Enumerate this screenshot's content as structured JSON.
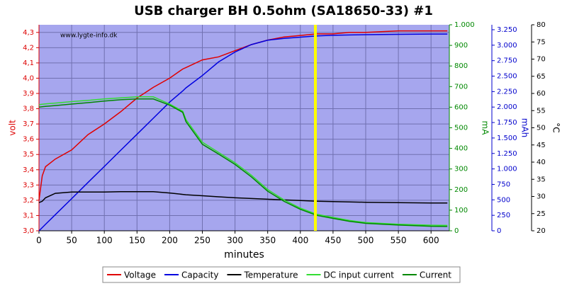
{
  "chart_data": {
    "type": "line",
    "title": "USB charger BH 0.5ohm (SA18650-33) #1",
    "watermark": "www.lygte-info.dk",
    "x_label": "minutes",
    "xlim": [
      0,
      628
    ],
    "xticks": [
      0,
      50,
      100,
      150,
      200,
      250,
      300,
      350,
      400,
      450,
      500,
      550,
      600
    ],
    "y_label": "volt",
    "y_color": "#dd0000",
    "ylim": [
      3.0,
      4.35
    ],
    "yticks": [
      {
        "value": 3.0,
        "label": "3,0"
      },
      {
        "value": 3.1,
        "label": "3,1"
      },
      {
        "value": 3.2,
        "label": "3,2"
      },
      {
        "value": 3.3,
        "label": "3,3"
      },
      {
        "value": 3.4,
        "label": "3,4"
      },
      {
        "value": 3.5,
        "label": "3,5"
      },
      {
        "value": 3.6,
        "label": "3,6"
      },
      {
        "value": 3.7,
        "label": "3,7"
      },
      {
        "value": 3.8,
        "label": "3,8"
      },
      {
        "value": 3.9,
        "label": "3,9"
      },
      {
        "value": 4.0,
        "label": "4,0"
      },
      {
        "value": 4.1,
        "label": "4,1"
      },
      {
        "value": 4.2,
        "label": "4,2"
      },
      {
        "value": 4.3,
        "label": "4,3"
      }
    ],
    "y2_label": "mA",
    "y2_color": "#008800",
    "y2lim": [
      0,
      1000
    ],
    "y2ticks": [
      0,
      100,
      200,
      300,
      400,
      500,
      600,
      700,
      800,
      900,
      {
        "value": 1000,
        "label": "1.000"
      }
    ],
    "y3_label": "mAh",
    "y3_color": "#0000cc",
    "y3lim": [
      0,
      3330
    ],
    "y3ticks": [
      0,
      250,
      500,
      750,
      {
        "value": 1000,
        "label": "1.000"
      },
      {
        "value": 1250,
        "label": "1.250"
      },
      {
        "value": 1500,
        "label": "1.500"
      },
      {
        "value": 1750,
        "label": "1.750"
      },
      {
        "value": 2000,
        "label": "2.000"
      },
      {
        "value": 2250,
        "label": "2.250"
      },
      {
        "value": 2500,
        "label": "2.500"
      },
      {
        "value": 2750,
        "label": "2.750"
      },
      {
        "value": 3000,
        "label": "3.000"
      },
      {
        "value": 3250,
        "label": "3.250"
      }
    ],
    "y4_label": "°C",
    "y4_color": "#000000",
    "y4lim": [
      20,
      80
    ],
    "y4ticks": [
      20,
      25,
      30,
      35,
      40,
      45,
      50,
      55,
      60,
      65,
      70,
      75,
      80
    ],
    "grid": true,
    "background": "#a6a6ee",
    "marker_x": 423,
    "marker_color": "#ffff00",
    "x": [
      0,
      5,
      10,
      25,
      50,
      75,
      100,
      125,
      150,
      175,
      200,
      220,
      225,
      250,
      275,
      300,
      325,
      350,
      375,
      400,
      425,
      450,
      475,
      500,
      550,
      600,
      625
    ],
    "series": [
      {
        "name": "Voltage",
        "color": "#e00000",
        "axis": "y",
        "values": [
          3.2,
          3.36,
          3.42,
          3.47,
          3.53,
          3.63,
          3.7,
          3.78,
          3.87,
          3.94,
          4.0,
          4.06,
          4.07,
          4.12,
          4.14,
          4.18,
          4.22,
          4.25,
          4.27,
          4.28,
          4.29,
          4.29,
          4.3,
          4.3,
          4.31,
          4.31,
          4.31
        ]
      },
      {
        "name": "Capacity",
        "color": "#0000e0",
        "axis": "y3",
        "values": [
          0,
          52,
          104,
          260,
          520,
          780,
          1040,
          1300,
          1560,
          1820,
          2080,
          2260,
          2310,
          2510,
          2730,
          2890,
          3010,
          3080,
          3110,
          3130,
          3150,
          3160,
          3165,
          3170,
          3175,
          3180,
          3180
        ]
      },
      {
        "name": "Temperature",
        "color": "#000000",
        "axis": "y4",
        "values": [
          28.2,
          28.6,
          29.6,
          30.9,
          31.3,
          31.3,
          31.3,
          31.4,
          31.4,
          31.4,
          31.0,
          30.6,
          30.5,
          30.2,
          29.9,
          29.6,
          29.4,
          29.2,
          29.0,
          28.8,
          28.6,
          28.5,
          28.4,
          28.3,
          28.2,
          28.1,
          28.1
        ]
      },
      {
        "name": "DC input current",
        "color": "#33dd33",
        "axis": "y2",
        "values": [
          612,
          614,
          616,
          620,
          627,
          633,
          640,
          645,
          650,
          650,
          615,
          580,
          540,
          430,
          380,
          330,
          270,
          200,
          150,
          110,
          80,
          65,
          50,
          40,
          32,
          27,
          26
        ]
      },
      {
        "name": "Current",
        "color": "#008800",
        "axis": "y2",
        "values": [
          600,
          602,
          604,
          608,
          615,
          622,
          630,
          636,
          640,
          640,
          610,
          575,
          530,
          420,
          372,
          322,
          262,
          192,
          143,
          104,
          75,
          60,
          46,
          36,
          28,
          22,
          21
        ]
      }
    ],
    "legend": "bottom"
  }
}
